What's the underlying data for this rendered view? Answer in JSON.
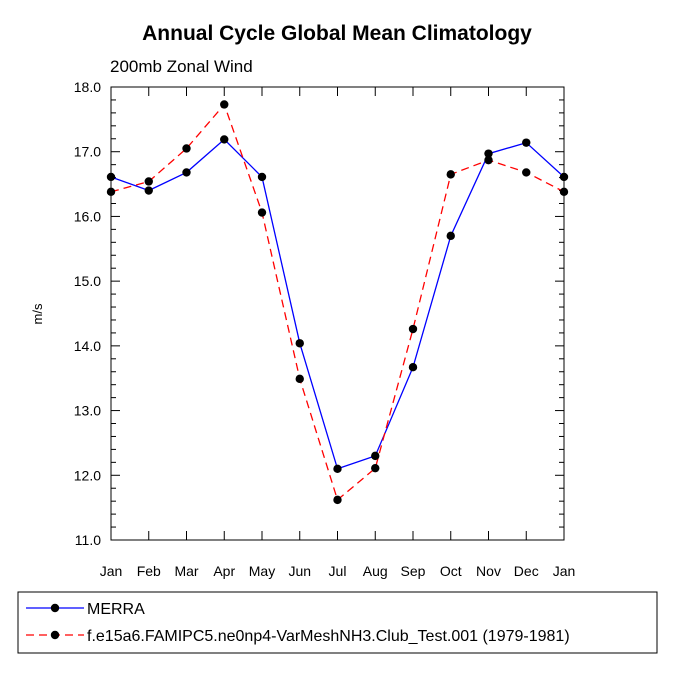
{
  "chart_data": {
    "type": "line",
    "title": "Annual Cycle Global Mean Climatology",
    "subtitle": "200mb Zonal Wind",
    "xlabel": "",
    "ylabel": "m/s",
    "ylim": [
      11.0,
      18.0
    ],
    "yticks": [
      "11.0",
      "12.0",
      "13.0",
      "14.0",
      "15.0",
      "16.0",
      "17.0",
      "18.0"
    ],
    "categories": [
      "Jan",
      "Feb",
      "Mar",
      "Apr",
      "May",
      "Jun",
      "Jul",
      "Aug",
      "Sep",
      "Oct",
      "Nov",
      "Dec",
      "Jan"
    ],
    "grid": false,
    "legend_position": "bottom",
    "series": [
      {
        "name": "MERRA",
        "color": "#0000ff",
        "line_style": "solid",
        "values": [
          16.61,
          16.4,
          16.68,
          17.19,
          16.61,
          14.04,
          12.1,
          12.3,
          13.67,
          15.7,
          16.97,
          17.14,
          16.61
        ]
      },
      {
        "name": "f.e15a6.FAMIPC5.ne0np4-VarMeshNH3.Club_Test.001 (1979-1981)",
        "color": "#ff0000",
        "line_style": "dashed",
        "values": [
          16.38,
          16.54,
          17.05,
          17.73,
          16.06,
          13.49,
          11.62,
          12.11,
          14.26,
          16.65,
          16.87,
          16.68,
          16.38
        ]
      }
    ]
  }
}
